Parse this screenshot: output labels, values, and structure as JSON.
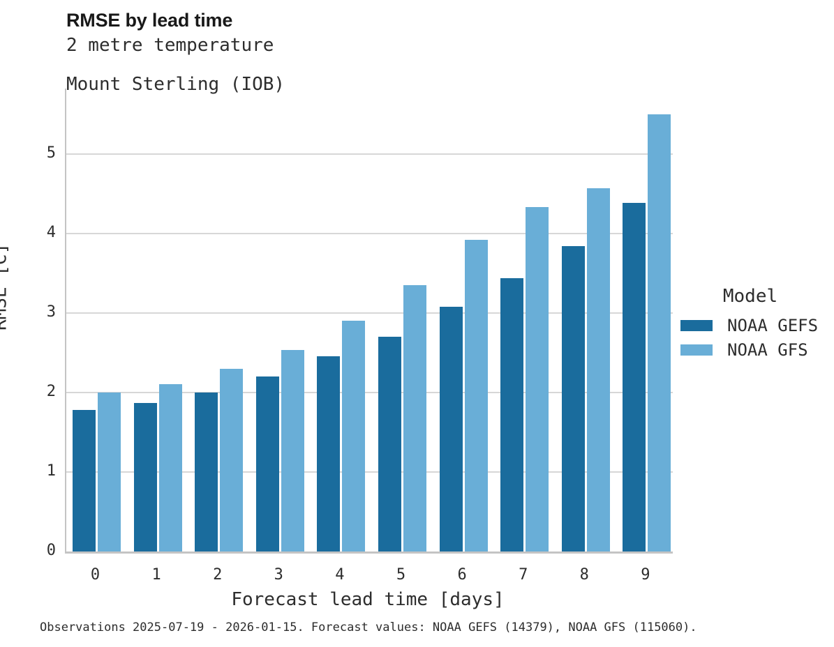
{
  "header": {
    "title": "RMSE by lead time",
    "subtitle_line1": "2 metre temperature",
    "subtitle_line2": "Mount Sterling (IOB)"
  },
  "chart_data": {
    "type": "bar",
    "title": "RMSE by lead time",
    "subtitle": [
      "2 metre temperature",
      "Mount Sterling (IOB)"
    ],
    "categories": [
      "0",
      "1",
      "2",
      "3",
      "4",
      "5",
      "6",
      "7",
      "8",
      "9"
    ],
    "series": [
      {
        "name": "NOAA GEFS",
        "color": "#1a6c9d",
        "values": [
          1.78,
          1.87,
          2.0,
          2.2,
          2.45,
          2.7,
          3.08,
          3.44,
          3.84,
          4.38
        ]
      },
      {
        "name": "NOAA GFS",
        "color": "#69aed7",
        "values": [
          2.0,
          2.1,
          2.3,
          2.53,
          2.9,
          3.35,
          3.92,
          4.33,
          4.57,
          5.5
        ]
      }
    ],
    "xlabel": "Forecast lead time [days]",
    "ylabel": "RMSE [C]",
    "ylim": [
      0,
      5.82
    ],
    "yticks": [
      0,
      1,
      2,
      3,
      4,
      5
    ],
    "grid": "horizontal",
    "grid_color": "#d7d7d7",
    "legend_title": "Model",
    "legend_position": "right"
  },
  "legend": {
    "title": "Model",
    "items": [
      {
        "label": "NOAA GEFS",
        "color": "#1a6c9d"
      },
      {
        "label": "NOAA GFS",
        "color": "#69aed7"
      }
    ]
  },
  "footer": {
    "caption": "Observations 2025-07-19 - 2026-01-15. Forecast values: NOAA GEFS (14379), NOAA GFS (115060)."
  }
}
